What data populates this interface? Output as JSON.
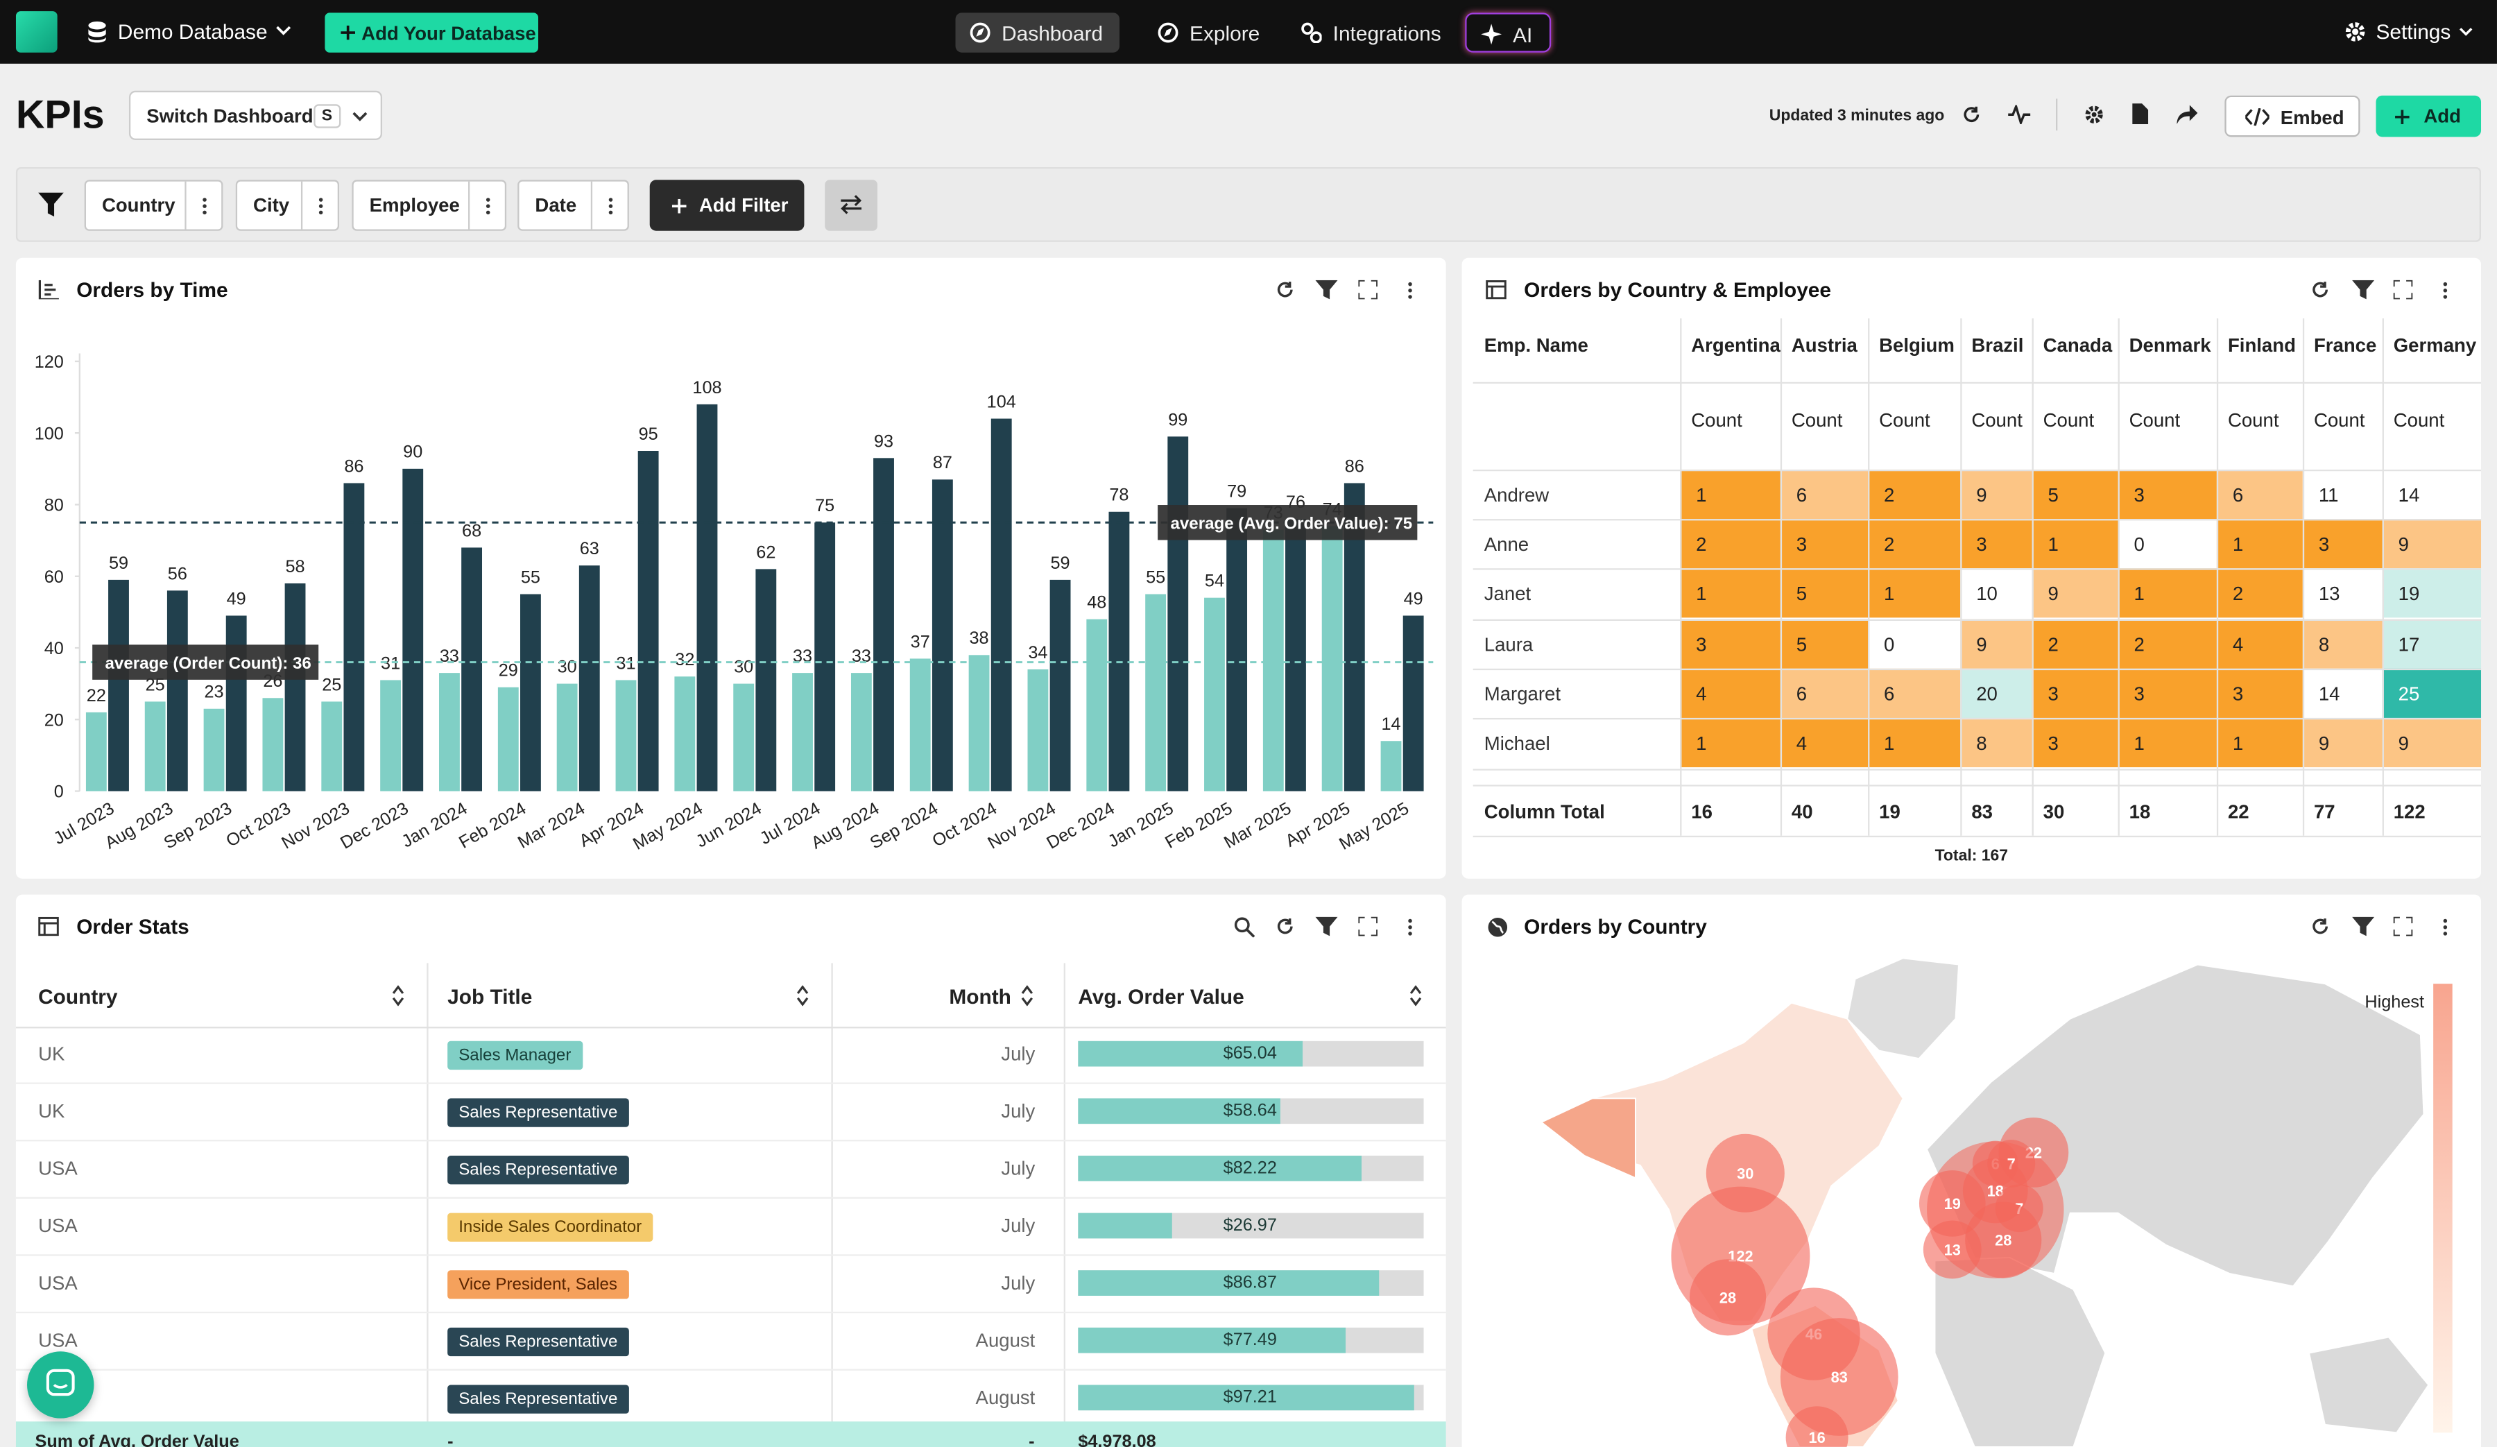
{
  "nav": {
    "database": "Demo Database",
    "add_database": "Add Your Database",
    "tabs": [
      "Dashboard",
      "Explore",
      "Integrations",
      "AI"
    ],
    "settings": "Settings"
  },
  "header": {
    "title": "KPIs",
    "switch": "Switch Dashboard",
    "shortcut": "S",
    "updated": "Updated 3 minutes ago",
    "embed": "Embed",
    "add": "Add"
  },
  "filters": {
    "items": [
      "Country",
      "City",
      "Employee",
      "Date"
    ],
    "add": "Add Filter"
  },
  "chart_data": {
    "type": "bar",
    "title": "Orders by Time",
    "categories": [
      "Jul 2023",
      "Aug 2023",
      "Sep 2023",
      "Oct 2023",
      "Nov 2023",
      "Dec 2023",
      "Jan 2024",
      "Feb 2024",
      "Mar 2024",
      "Apr 2024",
      "May 2024",
      "Jun 2024",
      "Jul 2024",
      "Aug 2024",
      "Sep 2024",
      "Oct 2024",
      "Nov 2024",
      "Dec 2024",
      "Jan 2025",
      "Feb 2025",
      "Mar 2025",
      "Apr 2025",
      "May 2025"
    ],
    "series": [
      {
        "color": "#80cfc5",
        "values": [
          22,
          25,
          23,
          26,
          25,
          31,
          33,
          29,
          30,
          31,
          32,
          30,
          33,
          33,
          37,
          38,
          34,
          48,
          55,
          54,
          73,
          74,
          14
        ]
      },
      {
        "color": "#21404d",
        "values": [
          59,
          56,
          49,
          58,
          86,
          90,
          68,
          55,
          63,
          95,
          108,
          62,
          75,
          93,
          87,
          104,
          59,
          78,
          99,
          79,
          76,
          86,
          49
        ]
      }
    ],
    "ylim": [
      0,
      120
    ],
    "yticks": [
      0,
      20,
      40,
      60,
      80,
      100,
      120
    ],
    "grid": false,
    "reference_lines": [
      {
        "value": 36,
        "label": "average (Order Count): 36"
      },
      {
        "value": 75,
        "label": "average (Avg. Order Value): 75"
      }
    ]
  },
  "pivot": {
    "title": "Orders by Country & Employee",
    "row_header": "Emp. Name",
    "columns": [
      "Argentina",
      "Austria",
      "Belgium",
      "Brazil",
      "Canada",
      "Denmark",
      "Finland",
      "France",
      "Germany"
    ],
    "measure": "Count",
    "rows": [
      {
        "name": "Andrew",
        "values": [
          1,
          6,
          2,
          9,
          5,
          3,
          6,
          11,
          14
        ]
      },
      {
        "name": "Anne",
        "values": [
          2,
          3,
          2,
          3,
          1,
          0,
          1,
          3,
          9
        ]
      },
      {
        "name": "Janet",
        "values": [
          1,
          5,
          1,
          10,
          9,
          1,
          2,
          13,
          19
        ]
      },
      {
        "name": "Laura",
        "values": [
          3,
          5,
          0,
          9,
          2,
          2,
          4,
          8,
          17
        ]
      },
      {
        "name": "Margaret",
        "values": [
          4,
          6,
          6,
          20,
          3,
          3,
          3,
          14,
          25
        ]
      },
      {
        "name": "Michael",
        "values": [
          1,
          4,
          1,
          8,
          3,
          1,
          1,
          9,
          9
        ]
      }
    ],
    "total_label": "Column Total",
    "totals": [
      16,
      40,
      19,
      83,
      30,
      18,
      22,
      77,
      122
    ],
    "grand_total": "Total: 167"
  },
  "order_stats": {
    "title": "Order Stats",
    "headers": [
      "Country",
      "Job Title",
      "Month",
      "Avg. Order Value"
    ],
    "value_range": [
      0,
      100
    ],
    "rows": [
      {
        "country": "UK",
        "job_title": "Sales Manager",
        "month": "July",
        "value": 65.04,
        "value_label": "$65.04"
      },
      {
        "country": "UK",
        "job_title": "Sales Representative",
        "month": "July",
        "value": 58.64,
        "value_label": "$58.64"
      },
      {
        "country": "USA",
        "job_title": "Sales Representative",
        "month": "July",
        "value": 82.22,
        "value_label": "$82.22"
      },
      {
        "country": "USA",
        "job_title": "Inside Sales Coordinator",
        "month": "July",
        "value": 26.97,
        "value_label": "$26.97"
      },
      {
        "country": "USA",
        "job_title": "Vice President, Sales",
        "month": "July",
        "value": 86.87,
        "value_label": "$86.87"
      },
      {
        "country": "USA",
        "job_title": "Sales Representative",
        "month": "August",
        "value": 77.49,
        "value_label": "$77.49"
      },
      {
        "country": null,
        "job_title": "Sales Representative",
        "month": "August",
        "value": 97.21,
        "value_label": "$97.21"
      }
    ],
    "footer": [
      "Sum of Avg. Order Value",
      "-",
      "-",
      "$4,978.08"
    ]
  },
  "map": {
    "title": "Orders by Country",
    "legend": "Highest",
    "bubbles": [
      30,
      122,
      28,
      46,
      83,
      16,
      22,
      6,
      7,
      18,
      19,
      7,
      28,
      13
    ]
  }
}
